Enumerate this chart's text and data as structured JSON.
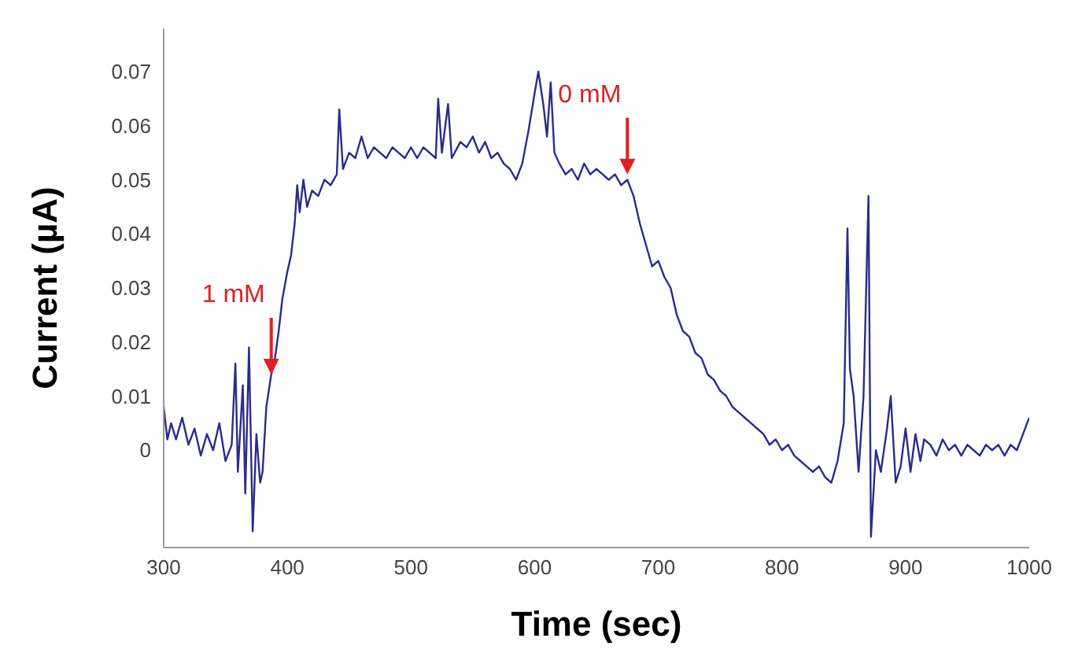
{
  "chart_data": {
    "type": "line",
    "xlabel": "Time (sec)",
    "ylabel": "Current (µA)",
    "xlim": [
      300,
      1000
    ],
    "xticks": [
      300,
      400,
      500,
      600,
      700,
      800,
      900,
      1000
    ],
    "ylim": [
      -0.018,
      0.078
    ],
    "yticks": [
      0,
      0.01,
      0.02,
      0.03,
      0.04,
      0.05,
      0.06,
      0.07
    ],
    "grid": false,
    "marker": "none",
    "line_style": "solid",
    "annotations": [
      {
        "text": "1 mM",
        "x": 387,
        "y": 0.014
      },
      {
        "text": "0 mM",
        "x": 675,
        "y": 0.051
      }
    ],
    "series": [
      {
        "color": "#2b2b8c",
        "x": [
          300,
          303,
          306,
          310,
          315,
          320,
          325,
          330,
          335,
          340,
          345,
          350,
          355,
          358,
          360,
          364,
          366,
          369,
          372,
          375,
          378,
          380,
          383,
          387,
          390,
          393,
          396,
          400,
          403,
          406,
          408,
          410,
          413,
          416,
          420,
          425,
          430,
          435,
          440,
          442,
          445,
          450,
          455,
          460,
          465,
          470,
          475,
          480,
          485,
          490,
          495,
          500,
          505,
          510,
          515,
          520,
          522,
          525,
          530,
          533,
          540,
          545,
          550,
          555,
          560,
          565,
          570,
          575,
          580,
          585,
          590,
          595,
          600,
          603,
          607,
          610,
          613,
          616,
          620,
          625,
          630,
          635,
          640,
          645,
          650,
          655,
          660,
          665,
          670,
          675,
          680,
          685,
          690,
          695,
          700,
          705,
          710,
          715,
          720,
          725,
          730,
          735,
          740,
          745,
          750,
          755,
          760,
          765,
          770,
          775,
          780,
          785,
          790,
          795,
          800,
          805,
          810,
          815,
          820,
          825,
          830,
          835,
          840,
          845,
          850,
          853,
          855,
          858,
          862,
          866,
          870,
          872,
          876,
          880,
          885,
          888,
          892,
          896,
          900,
          904,
          908,
          912,
          915,
          920,
          925,
          930,
          935,
          940,
          945,
          950,
          955,
          960,
          965,
          970,
          975,
          980,
          985,
          990,
          995,
          1000
        ],
        "values": [
          0.008,
          0.002,
          0.005,
          0.002,
          0.006,
          0.001,
          0.004,
          -0.001,
          0.003,
          0,
          0.005,
          -0.002,
          0.001,
          0.016,
          -0.004,
          0.012,
          -0.008,
          0.019,
          -0.015,
          0.003,
          -0.006,
          -0.004,
          0.008,
          0.014,
          0.017,
          0.022,
          0.028,
          0.033,
          0.036,
          0.042,
          0.049,
          0.044,
          0.05,
          0.045,
          0.048,
          0.047,
          0.05,
          0.049,
          0.051,
          0.063,
          0.052,
          0.055,
          0.054,
          0.058,
          0.054,
          0.056,
          0.055,
          0.054,
          0.056,
          0.055,
          0.054,
          0.056,
          0.054,
          0.056,
          0.055,
          0.054,
          0.065,
          0.055,
          0.064,
          0.054,
          0.057,
          0.056,
          0.058,
          0.055,
          0.057,
          0.054,
          0.055,
          0.053,
          0.052,
          0.05,
          0.053,
          0.059,
          0.066,
          0.07,
          0.064,
          0.058,
          0.068,
          0.055,
          0.053,
          0.051,
          0.052,
          0.05,
          0.053,
          0.051,
          0.052,
          0.051,
          0.05,
          0.051,
          0.049,
          0.05,
          0.047,
          0.042,
          0.038,
          0.034,
          0.035,
          0.032,
          0.03,
          0.025,
          0.022,
          0.021,
          0.018,
          0.017,
          0.014,
          0.013,
          0.011,
          0.01,
          0.008,
          0.007,
          0.006,
          0.005,
          0.004,
          0.003,
          0.001,
          0.002,
          0,
          0.001,
          -0.001,
          -0.002,
          -0.003,
          -0.004,
          -0.003,
          -0.005,
          -0.006,
          -0.002,
          0.005,
          0.041,
          0.015,
          0.01,
          -0.004,
          0.01,
          0.047,
          -0.016,
          0,
          -0.004,
          0.004,
          0.01,
          -0.006,
          -0.003,
          0.004,
          -0.004,
          0.003,
          -0.002,
          0.002,
          0.001,
          -0.001,
          0.002,
          0,
          0.001,
          -0.001,
          0.001,
          0,
          -0.001,
          0.001,
          0,
          0.001,
          -0.001,
          0.001,
          0,
          0.003,
          0.006
        ]
      }
    ]
  }
}
